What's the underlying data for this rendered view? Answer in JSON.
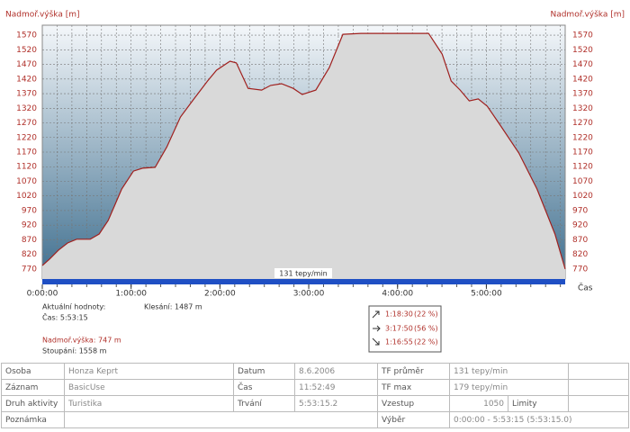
{
  "chart_data": {
    "type": "line",
    "y_label": "Nadmoř.výška [m]",
    "x_label": "Čas",
    "band_label": "131 tepy/min",
    "x": [
      0,
      293,
      659,
      1024,
      1390,
      1939,
      2305,
      2671,
      3220,
      3695,
      4061,
      4573,
      5049,
      5598,
      6146,
      6695,
      7061,
      7610,
      7866,
      8342,
      8890,
      9256,
      9695,
      10171,
      10537,
      11085,
      11634,
      12183,
      12915,
      14378,
      15659,
      16207,
      16573,
      16939,
      17305,
      17671,
      18037,
      18585,
      19317,
      20049,
      20780,
      21195
    ],
    "series": [
      {
        "color": "#a0201e",
        "values": [
          782,
          804,
          835,
          859,
          872,
          872,
          890,
          936,
          1044,
          1105,
          1115,
          1118,
          1188,
          1290,
          1352,
          1413,
          1450,
          1481,
          1475,
          1388,
          1382,
          1398,
          1404,
          1388,
          1367,
          1382,
          1459,
          1573,
          1576,
          1576,
          1576,
          1505,
          1413,
          1382,
          1345,
          1352,
          1327,
          1259,
          1167,
          1044,
          890,
          770
        ]
      }
    ],
    "xlim": [
      0,
      21195
    ],
    "xticks": [
      {
        "value": 0,
        "label": "0:00:00"
      },
      {
        "value": 3600,
        "label": "1:00:00"
      },
      {
        "value": 7200,
        "label": "2:00:00"
      },
      {
        "value": 10800,
        "label": "3:00:00"
      },
      {
        "value": 14400,
        "label": "4:00:00"
      },
      {
        "value": 18000,
        "label": "5:00:00"
      }
    ],
    "x_grid": [
      600,
      1200,
      1800,
      2400,
      3000,
      3600,
      4200,
      4800,
      5400,
      6000,
      6600,
      7200,
      7800,
      8400,
      9000,
      9600,
      10200,
      10800,
      11400,
      12000,
      12600,
      13200,
      13800,
      14400,
      15000,
      15600,
      16200,
      16800,
      17400,
      18000,
      18600,
      19200,
      19800,
      20400,
      21000
    ],
    "ylim": [
      736,
      1604
    ],
    "yticks": [
      770,
      820,
      870,
      920,
      970,
      1020,
      1070,
      1120,
      1170,
      1220,
      1270,
      1320,
      1370,
      1420,
      1470,
      1520,
      1570
    ],
    "grid": true,
    "fill_color": "#d9d9d9",
    "band_color": "#1f4fc4"
  },
  "info": {
    "current": "Aktuální hodnoty:",
    "descent": "Klesání: 1487 m",
    "time": "Čas: 5:53:15",
    "elevation": "Nadmoř.výška: 747 m",
    "ascent": "Stoupání: 1558 m"
  },
  "zones": [
    {
      "time": "1:18:30",
      "percent": "(22 %)"
    },
    {
      "time": "3:17:50",
      "percent": "(56 %)"
    },
    {
      "time": "1:16:55",
      "percent": "(22 %)"
    }
  ],
  "table": {
    "rows": [
      [
        "Osoba",
        "Honza Keprt",
        "Datum",
        "8.6.2006",
        "TF průměr",
        "131 tepy/min"
      ],
      [
        "Záznam",
        "BasicUse",
        "Čas",
        "11:52:49",
        "TF max",
        "179 tepy/min"
      ],
      [
        "Druh aktivity",
        "Turistika",
        "Trvání",
        "5:53:15.2",
        "Vzestup",
        "1050",
        "Limity"
      ],
      [
        "Poznámka",
        "Výběr",
        "0:00:00 - 5:53:15 (5:53:15.0)"
      ]
    ]
  }
}
